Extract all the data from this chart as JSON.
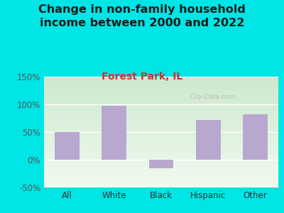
{
  "title": "Change in non-family household\nincome between 2000 and 2022",
  "subtitle": "Forest Park, IL",
  "categories": [
    "All",
    "White",
    "Black",
    "Hispanic",
    "Other"
  ],
  "values": [
    50,
    97,
    -15,
    72,
    82
  ],
  "bar_color": "#b8a8d0",
  "title_color": "#1a1a1a",
  "subtitle_color": "#cc3333",
  "ytick_color": "#555555",
  "xtick_color": "#333333",
  "background_outer": "#00e5e5",
  "grad_top": "#cce8cc",
  "grad_bottom": "#f0faf0",
  "ylim": [
    -50,
    150
  ],
  "yticks": [
    -50,
    0,
    50,
    100,
    150
  ],
  "ytick_labels": [
    "-50%",
    "0%",
    "50%",
    "100%",
    "150%"
  ],
  "watermark": "City-Data.com",
  "title_fontsize": 11.5,
  "subtitle_fontsize": 10,
  "tick_fontsize": 8.5
}
